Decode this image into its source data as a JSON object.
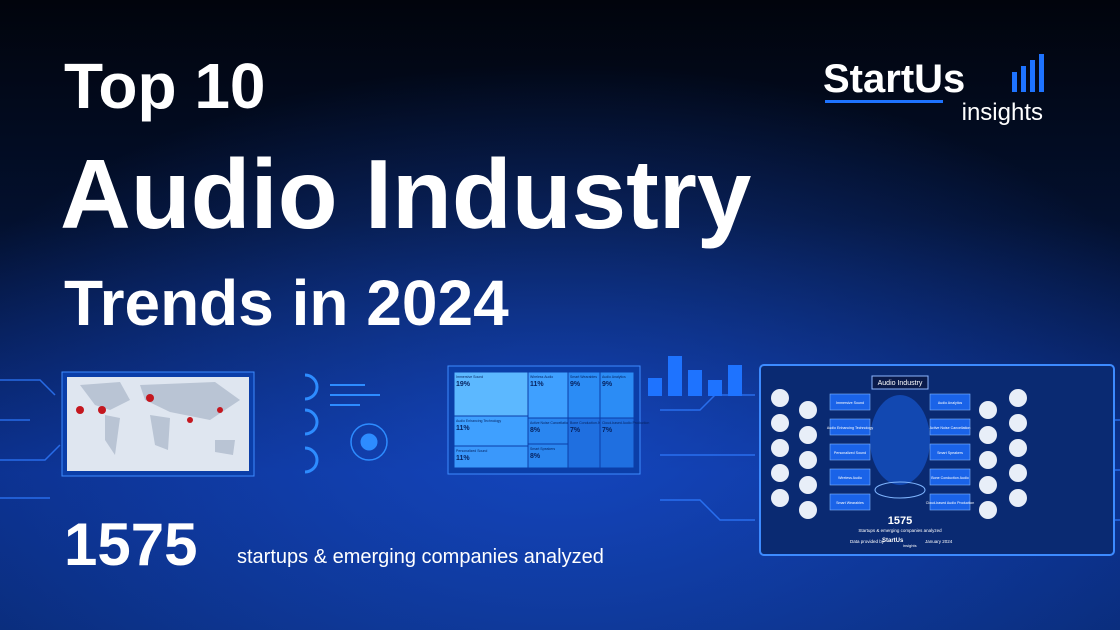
{
  "header": {
    "line1": "Top 10",
    "line2": "Audio Industry",
    "line3": "Trends in 2024"
  },
  "logo": {
    "brand": "StartUs",
    "sub": "insights"
  },
  "stat": {
    "number": "1575",
    "caption": "startups & emerging companies analyzed"
  },
  "treemap": {
    "tiles": [
      {
        "label": "Immersive Sound",
        "value": 19,
        "value_label": "19%"
      },
      {
        "label": "Wireless Audio",
        "value": 11,
        "value_label": "11%"
      },
      {
        "label": "Smart Wearables",
        "value": 9,
        "value_label": "9%"
      },
      {
        "label": "Audio Analytics",
        "value": 9,
        "value_label": "9%"
      },
      {
        "label": "Audio Enhancing Technology",
        "value": 11,
        "value_label": "11%"
      },
      {
        "label": "Active Noise Cancellation",
        "value": 8,
        "value_label": "8%"
      },
      {
        "label": "Bone Conduction Audio",
        "value": 7,
        "value_label": "7%"
      },
      {
        "label": "Cloud-based Audio Production",
        "value": 7,
        "value_label": "7%"
      },
      {
        "label": "Personalized Sound",
        "value": 11,
        "value_label": "11%"
      },
      {
        "label": "Smart Speakers",
        "value": 8,
        "value_label": "8%"
      }
    ]
  },
  "panel": {
    "title": "Audio Industry",
    "trends": [
      "Immersive Sound",
      "Audio Analytics",
      "Audio Enhancing Technology",
      "Active Noise Cancellation",
      "Personalized Sound",
      "Smart Speakers",
      "Wireless Audio",
      "Bone Conduction Audio",
      "Smart Wearables",
      "Cloud-based Audio Production"
    ],
    "number": "1575",
    "caption": "Startups & emerging companies analyzed",
    "source": "Data provided by",
    "brand": "StartUs",
    "sub": "insights",
    "date": "January 2024"
  }
}
